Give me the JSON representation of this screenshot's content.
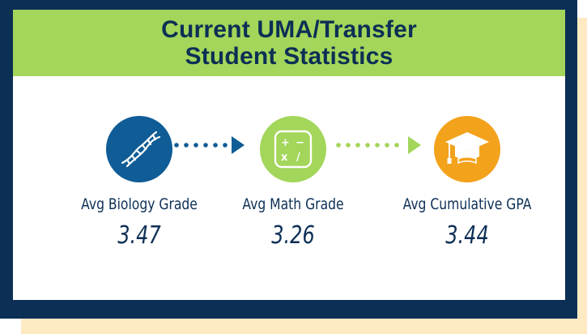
{
  "title": {
    "line1": "Current UMA/Transfer",
    "line2": "Student Statistics"
  },
  "colors": {
    "navy": "#0c2f55",
    "blue": "#0f5c96",
    "green": "#a3d65a",
    "orange": "#f3a21c",
    "cream": "#fde9c2"
  },
  "stats": [
    {
      "label": "Avg Biology Grade",
      "value": "3.47",
      "icon": "dna-icon"
    },
    {
      "label": "Avg Math Grade",
      "value": "3.26",
      "icon": "calculator-icon"
    },
    {
      "label": "Avg Cumulative GPA",
      "value": "3.44",
      "icon": "graduation-cap-icon"
    }
  ]
}
